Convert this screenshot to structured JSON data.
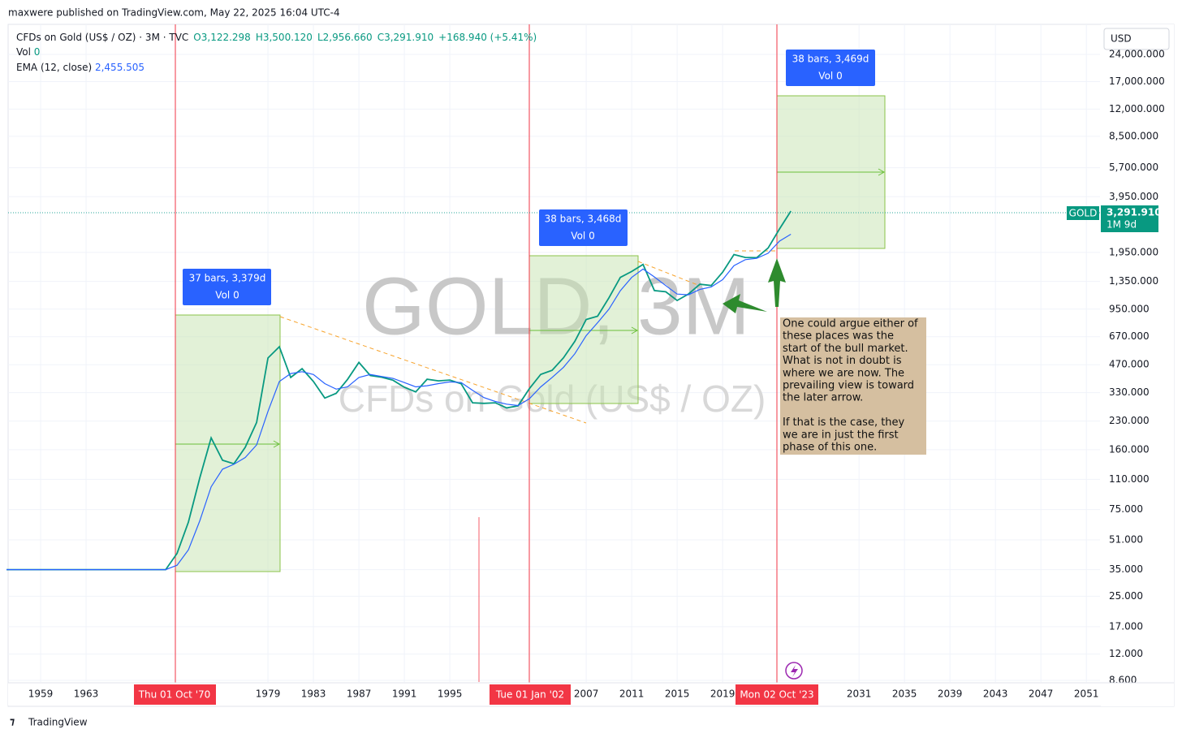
{
  "header": {
    "published": "maxwere published on TradingView.com, May 22, 2025 16:04 UTC-4"
  },
  "legend": {
    "symbol": "CFDs on Gold (US$ / OZ) · 3M · TVC",
    "open": "O3,122.298",
    "high": "H3,500.120",
    "low": "L2,956.660",
    "close": "C3,291.910",
    "change": "+168.940 (+5.41%)",
    "vol_label": "Vol",
    "vol_value": "0",
    "ema_label": "EMA (12, close)",
    "ema_value": "2,455.505"
  },
  "currency": "USD",
  "price_tag": {
    "symbol": "GOLD",
    "price": "3,291.910",
    "countdown": "1M 9d"
  },
  "ranges": [
    {
      "line1": "37 bars, 3,379d",
      "line2": "Vol 0"
    },
    {
      "line1": "38 bars, 3,468d",
      "line2": "Vol 0"
    },
    {
      "line1": "38 bars, 3,469d",
      "line2": "Vol 0"
    }
  ],
  "date_labels": [
    "Thu 01 Oct '70",
    "Tue 01 Jan '02",
    "Mon 02 Oct '23"
  ],
  "annotation": [
    "One could argue either of",
    "these places was the",
    "start of the bull market.",
    "What is not in doubt is",
    "where we are now.  The",
    "prevailing view is toward",
    "the later arrow.",
    "",
    "If that is the case, they",
    "we are in just the first",
    "phase of this one."
  ],
  "footer": "TradingView",
  "chart_data": {
    "type": "line",
    "watermark": "GOLD, 3M",
    "watermark_subtitle": "CFDs on Gold (US$ / OZ)",
    "log_scale": true,
    "grid": true,
    "x": [
      1956,
      1957,
      1958,
      1959,
      1960,
      1961,
      1962,
      1963,
      1964,
      1965,
      1966,
      1967,
      1968,
      1969,
      1970,
      1971,
      1972,
      1973,
      1974,
      1975,
      1976,
      1977,
      1978,
      1979,
      1980,
      1981,
      1982,
      1983,
      1984,
      1985,
      1986,
      1987,
      1988,
      1989,
      1990,
      1991,
      1992,
      1993,
      1994,
      1995,
      1996,
      1997,
      1998,
      1999,
      2000,
      2001,
      2002,
      2003,
      2004,
      2005,
      2006,
      2007,
      2008,
      2009,
      2010,
      2011,
      2012,
      2013,
      2014,
      2015,
      2016,
      2017,
      2018,
      2019,
      2020,
      2021,
      2022,
      2023,
      2024,
      2025
    ],
    "series": [
      {
        "name": "GOLD",
        "color": "#089981",
        "values": [
          35,
          35,
          35,
          35,
          35,
          35,
          35,
          35,
          35,
          35,
          35,
          35,
          35,
          35,
          35,
          43,
          64,
          112,
          186,
          140,
          134,
          165,
          226,
          512,
          590,
          400,
          447,
          380,
          308,
          327,
          390,
          484,
          410,
          401,
          386,
          353,
          333,
          391,
          383,
          387,
          369,
          290,
          288,
          290,
          272,
          279,
          347,
          416,
          438,
          513,
          632,
          834,
          869,
          1097,
          1421,
          1531,
          1675,
          1202,
          1184,
          1061,
          1152,
          1303,
          1282,
          1517,
          1898,
          1829,
          1824,
          2063,
          2625,
          3291.91
        ]
      },
      {
        "name": "EMA (12, close)",
        "color": "#2962ff",
        "values": [
          35,
          35,
          35,
          35,
          35,
          35,
          35,
          35,
          35,
          35,
          35,
          35,
          35,
          35,
          35,
          37,
          45,
          65,
          100,
          125,
          133,
          145,
          170,
          260,
          380,
          420,
          430,
          415,
          370,
          345,
          355,
          400,
          415,
          405,
          395,
          375,
          355,
          360,
          370,
          378,
          375,
          340,
          310,
          295,
          285,
          280,
          305,
          355,
          400,
          455,
          540,
          680,
          800,
          950,
          1200,
          1420,
          1580,
          1430,
          1280,
          1150,
          1140,
          1220,
          1260,
          1380,
          1650,
          1780,
          1810,
          1930,
          2250,
          2455.505
        ]
      }
    ],
    "xlim": [
      1956.14,
      2052.2
    ],
    "xticks": [
      1959,
      1963,
      1979,
      1983,
      1987,
      1991,
      1995,
      2007,
      2011,
      2015,
      2019,
      2031,
      2035,
      2039,
      2043,
      2047,
      2051
    ],
    "ylim": [
      8.43,
      35100
    ],
    "yticks": [
      {
        "value": 24000,
        "label": "24,000.000"
      },
      {
        "value": 17000,
        "label": "17,000.000"
      },
      {
        "value": 12000,
        "label": "12,000.000"
      },
      {
        "value": 8500,
        "label": "8,500.000"
      },
      {
        "value": 5700,
        "label": "5,700.000"
      },
      {
        "value": 3950,
        "label": "3,950.000"
      },
      {
        "value": 1950,
        "label": "1,950.000"
      },
      {
        "value": 1350,
        "label": "1,350.000"
      },
      {
        "value": 950,
        "label": "950.000"
      },
      {
        "value": 670,
        "label": "670.000"
      },
      {
        "value": 470,
        "label": "470.000"
      },
      {
        "value": 330,
        "label": "330.000"
      },
      {
        "value": 230,
        "label": "230.000"
      },
      {
        "value": 160,
        "label": "160.000"
      },
      {
        "value": 110,
        "label": "110.000"
      },
      {
        "value": 75,
        "label": "75.000"
      },
      {
        "value": 51,
        "label": "51.000"
      },
      {
        "value": 35,
        "label": "35.000"
      },
      {
        "value": 25,
        "label": "25.000"
      },
      {
        "value": 17,
        "label": "17.000"
      },
      {
        "value": 12,
        "label": "12.000"
      },
      {
        "value": 8.6,
        "label": "8.600"
      }
    ]
  }
}
